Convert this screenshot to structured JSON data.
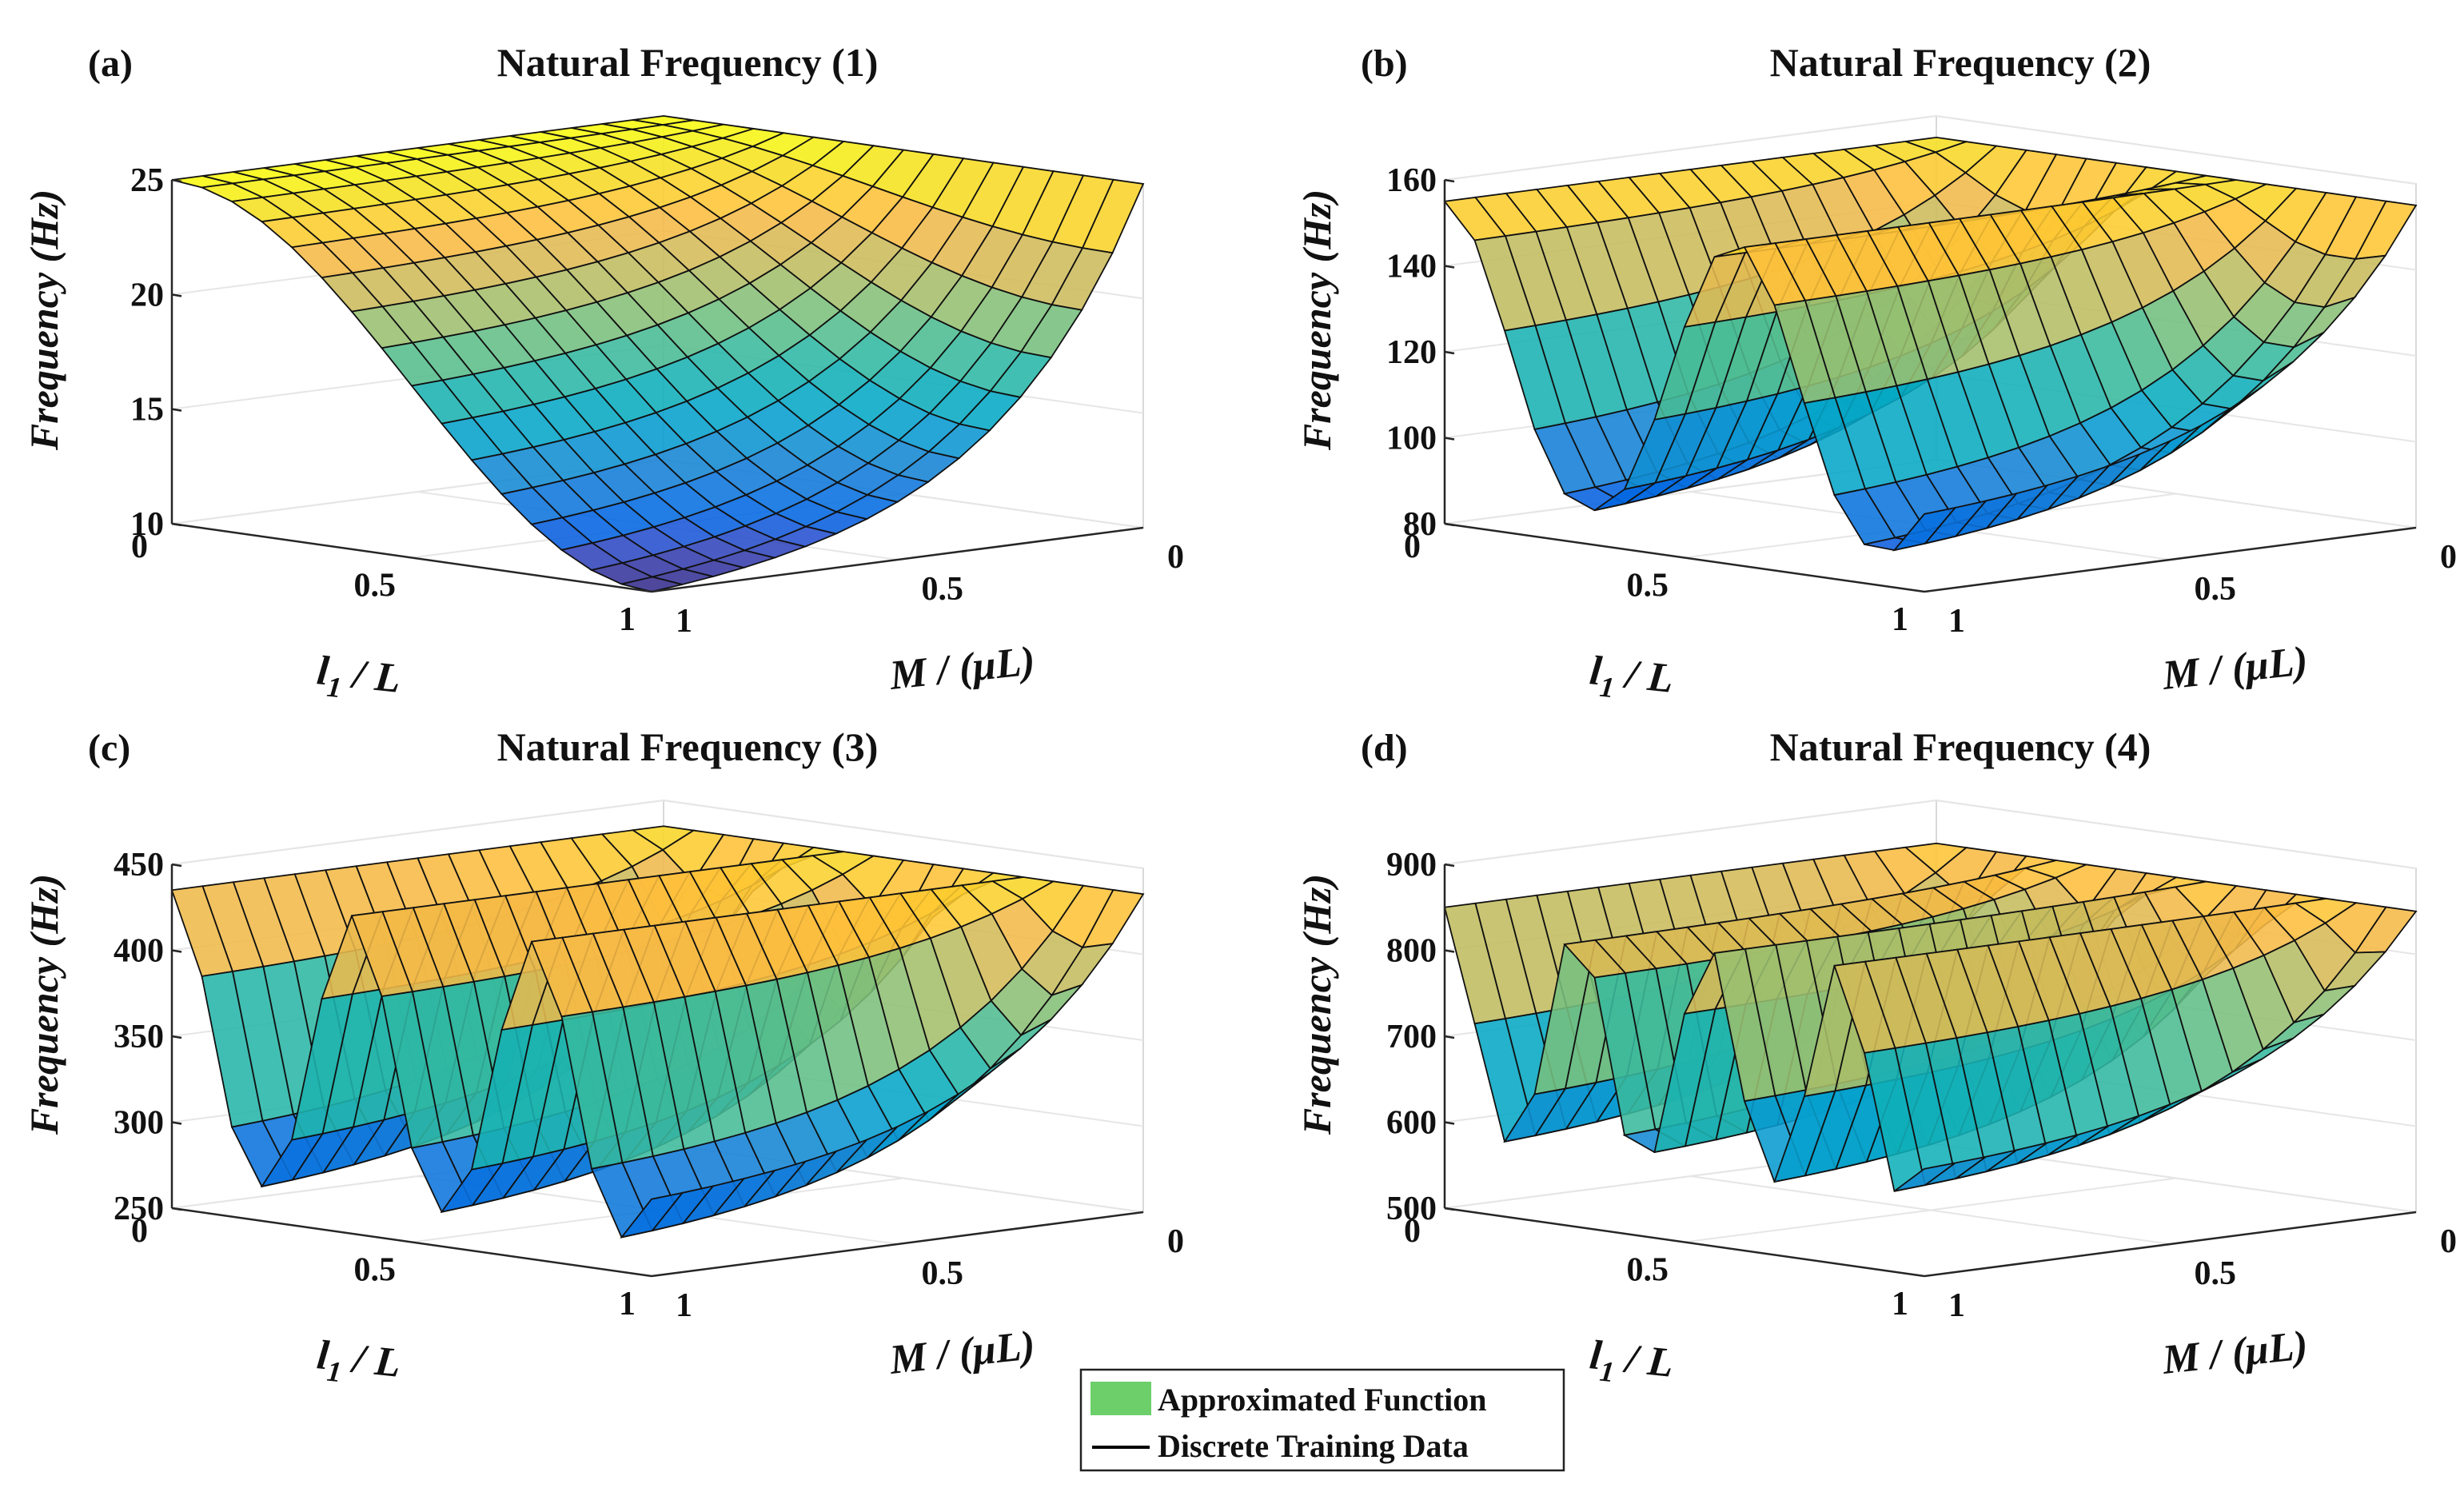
{
  "legend": {
    "items": [
      {
        "label": "Approximated Function",
        "kind": "patch",
        "color": "#6ccf6a"
      },
      {
        "label": "Discrete Training Data",
        "kind": "line",
        "color": "#000000"
      }
    ]
  },
  "chart_data": [
    {
      "type": "surface3d",
      "panel_label": "(a)",
      "title": "Natural Frequency (1)",
      "xlabel_sub": "1",
      "xlabel_prefix": "l",
      "xlabel_suffix": " / L",
      "ylabel": "M / (μL)",
      "zlabel": "Frequency (Hz)",
      "xlim": [
        0,
        1
      ],
      "ylim": [
        0,
        1
      ],
      "zlim": [
        10,
        25
      ],
      "xticks": [
        "0",
        "0.5",
        "1"
      ],
      "yticks": [
        "0",
        "0.5",
        "1"
      ],
      "zticks": [
        "10",
        "15",
        "20",
        "25"
      ],
      "surface": {
        "mode": 1,
        "base": 25.0,
        "drop": 15.0,
        "colormap": "parula"
      }
    },
    {
      "type": "surface3d",
      "panel_label": "(b)",
      "title": "Natural Frequency (2)",
      "xlabel_sub": "1",
      "xlabel_prefix": "l",
      "xlabel_suffix": " / L",
      "ylabel": "M / (μL)",
      "zlabel": "Frequency (Hz)",
      "xlim": [
        0,
        1
      ],
      "ylim": [
        0,
        1
      ],
      "zlim": [
        80,
        160
      ],
      "xticks": [
        "0",
        "0.5",
        "1"
      ],
      "yticks": [
        "0",
        "0.5",
        "1"
      ],
      "zticks": [
        "80",
        "100",
        "120",
        "140",
        "160"
      ],
      "surface": {
        "mode": 2,
        "base": 155.0,
        "drop": 67.0,
        "colormap": "parula"
      }
    },
    {
      "type": "surface3d",
      "panel_label": "(c)",
      "title": "Natural Frequency (3)",
      "xlabel_sub": "1",
      "xlabel_prefix": "l",
      "xlabel_suffix": " / L",
      "ylabel": "M / (μL)",
      "zlabel": "Frequency (Hz)",
      "xlim": [
        0,
        1
      ],
      "ylim": [
        0,
        1
      ],
      "zlim": [
        250,
        450
      ],
      "xticks": [
        "0",
        "0.5",
        "1"
      ],
      "yticks": [
        "0",
        "0.5",
        "1"
      ],
      "zticks": [
        "250",
        "300",
        "350",
        "400",
        "450"
      ],
      "surface": {
        "mode": 3,
        "base": 435.0,
        "drop": 165.0,
        "colormap": "parula"
      }
    },
    {
      "type": "surface3d",
      "panel_label": "(d)",
      "title": "Natural Frequency (4)",
      "xlabel_sub": "1",
      "xlabel_prefix": "l",
      "xlabel_suffix": " / L",
      "ylabel": "M / (μL)",
      "zlabel": "Frequency (Hz)",
      "xlim": [
        0,
        1
      ],
      "ylim": [
        0,
        1
      ],
      "zlim": [
        500,
        900
      ],
      "xticks": [
        "0",
        "0.5",
        "1"
      ],
      "yticks": [
        "0",
        "0.5",
        "1"
      ],
      "zticks": [
        "500",
        "600",
        "700",
        "800",
        "900"
      ],
      "surface": {
        "mode": 4,
        "base": 850.0,
        "drop": 265.0,
        "colormap": "parula"
      }
    }
  ]
}
